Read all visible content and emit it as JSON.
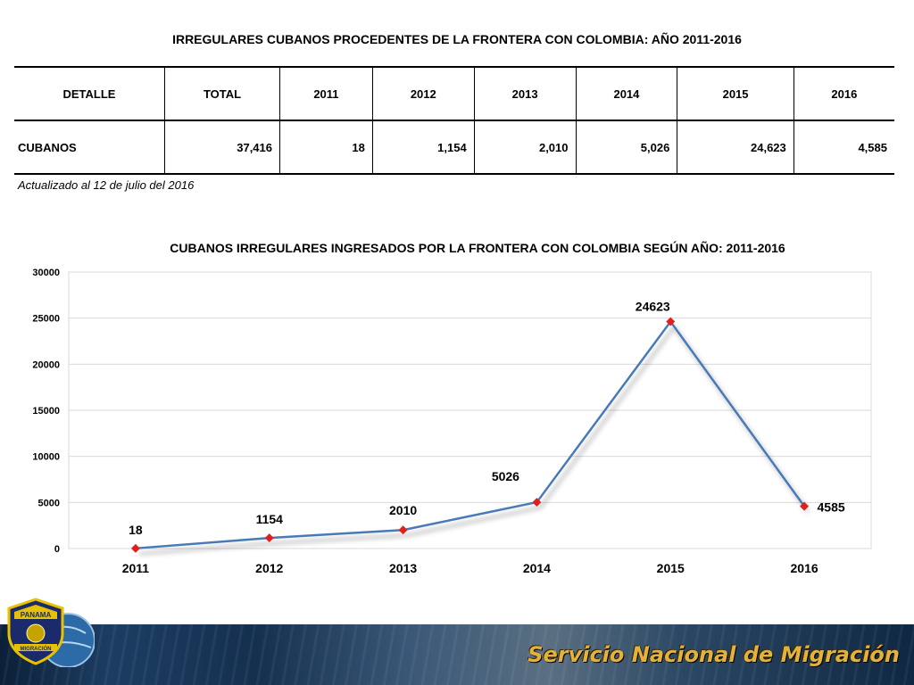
{
  "table": {
    "title": "IRREGULARES CUBANOS PROCEDENTES DE LA FRONTERA CON COLOMBIA: AÑO 2011-2016",
    "headers": [
      "DETALLE",
      "TOTAL",
      "2011",
      "2012",
      "2013",
      "2014",
      "2015",
      "2016"
    ],
    "row": [
      "CUBANOS",
      "37,416",
      "18",
      "1,154",
      "2,010",
      "5,026",
      "24,623",
      "4,585"
    ],
    "note": "Actualizado al 12 de julio del 2016"
  },
  "chart_data": {
    "type": "line",
    "title": "CUBANOS IRREGULARES INGRESADOS POR LA FRONTERA CON COLOMBIA SEGÚN AÑO: 2011-2016",
    "categories": [
      "2011",
      "2012",
      "2013",
      "2014",
      "2015",
      "2016"
    ],
    "values": [
      18,
      1154,
      2010,
      5026,
      24623,
      4585
    ],
    "data_labels": [
      "18",
      "1154",
      "2010",
      "5026",
      "24623",
      "4585"
    ],
    "ylim": [
      0,
      30000
    ],
    "yticks": [
      0,
      5000,
      10000,
      15000,
      20000,
      25000,
      30000
    ],
    "ytick_labels": [
      "0",
      "5000",
      "10000",
      "15000",
      "20000",
      "25000",
      "30000"
    ],
    "grid": true,
    "line_color": "#4a7ab8",
    "marker_color": "#e0201c",
    "xlabel": "",
    "ylabel": ""
  },
  "logo": {
    "top_text": "PANAMA",
    "bottom_text": "MIGRACIÓN"
  },
  "footer": {
    "text": "Servicio Nacional de Migración"
  }
}
